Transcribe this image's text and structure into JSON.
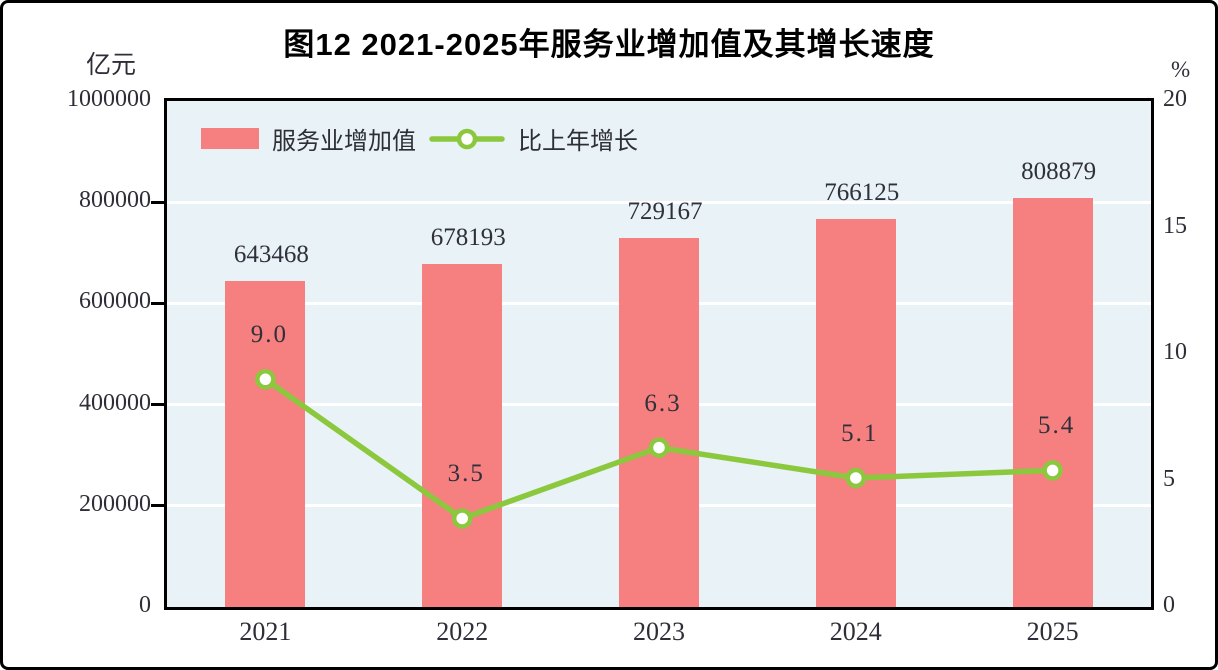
{
  "title": "图12  2021-2025年服务业增加值及其增长速度",
  "left_axis_unit": "亿元",
  "right_axis_unit": "%",
  "legend": {
    "bar_label": "服务业增加值",
    "line_label": "比上年增长"
  },
  "colors": {
    "bar": "#f5807f",
    "line": "#8cc83e",
    "plot_bg": "#e9f2f7",
    "grid": "#ffffff",
    "text": "#30303c",
    "frame": "#000000"
  },
  "chart_data": {
    "type": "bar",
    "subtype": "bar+line-dual-axis",
    "title": "图12  2021-2025年服务业增加值及其增长速度",
    "categories": [
      "2021",
      "2022",
      "2023",
      "2024",
      "2025"
    ],
    "series": [
      {
        "name": "服务业增加值",
        "type": "bar",
        "axis": "left",
        "unit": "亿元",
        "values": [
          643468,
          678193,
          729167,
          766125,
          808879
        ],
        "labels": [
          "643468",
          "678193",
          "729167",
          "766125",
          "808879"
        ]
      },
      {
        "name": "比上年增长",
        "type": "line",
        "axis": "right",
        "unit": "%",
        "values": [
          9.0,
          3.5,
          6.3,
          5.1,
          5.4
        ],
        "labels": [
          "9.0",
          "3.5",
          "6.3",
          "5.1",
          "5.4"
        ]
      }
    ],
    "left_axis": {
      "unit": "亿元",
      "range": [
        0,
        1000000
      ],
      "ticks": [
        1000000,
        800000,
        600000,
        400000,
        200000,
        0
      ],
      "tick_labels": [
        "1000000",
        "800000",
        "600000",
        "400000",
        "200000",
        "0"
      ]
    },
    "right_axis": {
      "unit": "%",
      "range": [
        0,
        20
      ],
      "ticks": [
        20,
        15,
        10,
        5,
        0
      ],
      "tick_labels": [
        "20",
        "15",
        "10",
        "5",
        "0"
      ]
    },
    "grid": true,
    "gridline_values": [
      800000,
      600000,
      400000,
      200000
    ],
    "legend_position": "top-left-inside"
  }
}
